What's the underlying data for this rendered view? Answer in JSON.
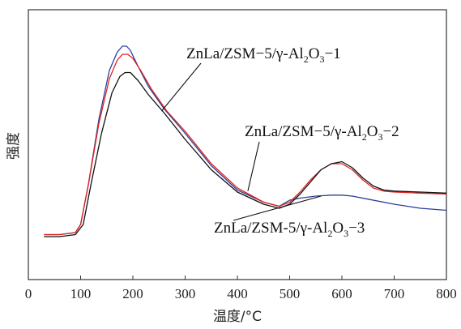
{
  "chart_data": {
    "type": "line",
    "xlabel": "温度/°C",
    "ylabel": "强度",
    "xlim": [
      0,
      800
    ],
    "xticks": [
      0,
      100,
      200,
      300,
      400,
      500,
      600,
      700,
      800
    ],
    "grid": false,
    "legend": "none",
    "y_units": "arbitrary (no numeric ticks)",
    "series": [
      {
        "name": "ZnLa/ZSM−5/γ-Al2O3−1",
        "color": "#111111",
        "x": [
          30,
          60,
          90,
          105,
          120,
          140,
          160,
          175,
          185,
          195,
          210,
          230,
          260,
          300,
          350,
          400,
          450,
          480,
          500,
          520,
          540,
          560,
          580,
          600,
          620,
          640,
          660,
          680,
          700,
          750,
          800
        ],
        "y": [
          0.04,
          0.04,
          0.05,
          0.1,
          0.3,
          0.55,
          0.75,
          0.83,
          0.85,
          0.85,
          0.81,
          0.74,
          0.65,
          0.52,
          0.37,
          0.26,
          0.2,
          0.18,
          0.2,
          0.25,
          0.31,
          0.37,
          0.4,
          0.41,
          0.38,
          0.33,
          0.29,
          0.27,
          0.265,
          0.26,
          0.255
        ]
      },
      {
        "name": "ZnLa/ZSM−5/γ-Al2O3−2",
        "color": "#e02020",
        "x": [
          30,
          60,
          90,
          100,
          115,
          135,
          155,
          170,
          180,
          190,
          200,
          215,
          235,
          265,
          300,
          350,
          400,
          450,
          480,
          500,
          520,
          540,
          560,
          580,
          600,
          620,
          640,
          660,
          680,
          700,
          750,
          800
        ],
        "y": [
          0.05,
          0.05,
          0.06,
          0.1,
          0.3,
          0.6,
          0.82,
          0.91,
          0.94,
          0.94,
          0.92,
          0.86,
          0.77,
          0.66,
          0.56,
          0.4,
          0.28,
          0.21,
          0.19,
          0.21,
          0.26,
          0.32,
          0.37,
          0.4,
          0.4,
          0.37,
          0.32,
          0.28,
          0.265,
          0.26,
          0.255,
          0.25
        ]
      },
      {
        "name": "ZnLa/ZSM-5/γ-Al2O3−3",
        "color": "#2c3f9c",
        "x": [
          30,
          60,
          90,
          100,
          115,
          135,
          155,
          170,
          180,
          188,
          195,
          210,
          230,
          260,
          300,
          350,
          400,
          450,
          480,
          500,
          520,
          550,
          580,
          600,
          620,
          650,
          700,
          750,
          800
        ],
        "y": [
          0.05,
          0.05,
          0.06,
          0.1,
          0.3,
          0.62,
          0.86,
          0.95,
          0.98,
          0.98,
          0.96,
          0.88,
          0.78,
          0.67,
          0.55,
          0.39,
          0.27,
          0.21,
          0.19,
          0.22,
          0.23,
          0.24,
          0.245,
          0.245,
          0.24,
          0.225,
          0.2,
          0.18,
          0.17
        ]
      }
    ],
    "annotations": [
      {
        "prefix": "ZnLa/ZSM−5/γ-Al",
        "sub1": "2",
        "mid": "O",
        "sub2": "3",
        "suffix": "−1",
        "target": {
          "x": 255,
          "y": 0.66
        }
      },
      {
        "prefix": "ZnLa/ZSM−5/γ-Al",
        "sub1": "2",
        "mid": "O",
        "sub2": "3",
        "suffix": "−2",
        "target": {
          "x": 420,
          "y": 0.265
        }
      },
      {
        "prefix": "ZnLa/ZSM-5/γ-Al",
        "sub1": "2",
        "mid": "O",
        "sub2": "3",
        "suffix": "−3",
        "target": {
          "x": 560,
          "y": 0.24
        }
      }
    ]
  }
}
